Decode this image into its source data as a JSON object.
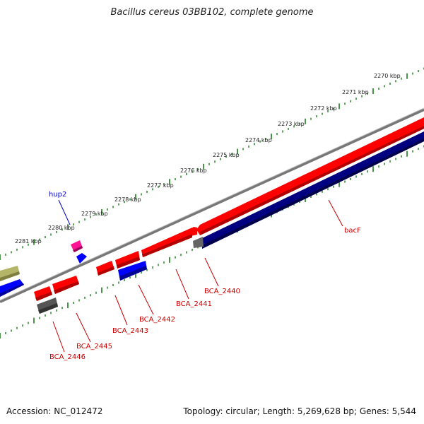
{
  "title": "Bacillus cereus 03BB102, complete genome",
  "footer": {
    "accession": "Accession: NC_012472",
    "summary": "Topology: circular; Length: 5,269,628 bp; Genes: 5,544"
  },
  "colors": {
    "forward_gene": "#ff0000",
    "reverse_gene": "#0000ff",
    "dark_gene": "#000080",
    "pseudo_gene": "#555555",
    "olive_gene": "#b5b56a",
    "magenta_gene": "#ff1493",
    "axis": "#888888",
    "ticks": "#1a7a1a",
    "label_red": "#cc0000",
    "label_blue": "#0000cc"
  },
  "scale_labels": [
    "2270 kbp",
    "2271 kbp",
    "2272 kbp",
    "2273 kbp",
    "2274 kbp",
    "2275 kbp",
    "2276 kbp",
    "2277 kbp",
    "2278 kbp",
    "2279 kbp",
    "2280 kbp",
    "2281 kbp"
  ],
  "gene_labels": [
    {
      "name": "hup2",
      "color": "blue"
    },
    {
      "name": "bacF",
      "color": "red"
    },
    {
      "name": "BCA_2440",
      "color": "red"
    },
    {
      "name": "BCA_2441",
      "color": "red"
    },
    {
      "name": "BCA_2442",
      "color": "red"
    },
    {
      "name": "BCA_2443",
      "color": "red"
    },
    {
      "name": "BCA_2445",
      "color": "red"
    },
    {
      "name": "BCA_2446",
      "color": "red"
    }
  ]
}
